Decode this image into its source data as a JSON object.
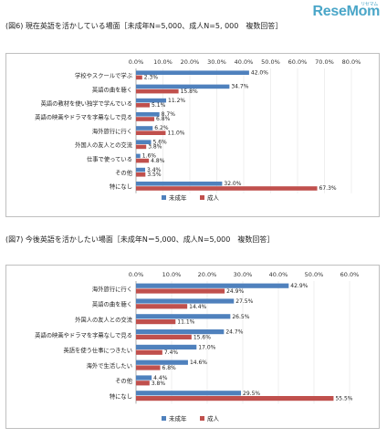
{
  "brand": {
    "name": "ReseMom",
    "sub": "リセマム"
  },
  "chart_data": [
    {
      "type": "bar",
      "title": "(図6) 現在英語を活かしている場面［未成年N=5,000、成人N=5, 000　複数回答］",
      "categories": [
        "学校やスクールで学ぶ",
        "英語の曲を聴く",
        "英語の教材を使い独学で学んでいる",
        "英語の映画やドラマを字幕なしで見る",
        "海外旅行に行く",
        "外国人の友人との交流",
        "仕事で使っている",
        "その他",
        "特になし"
      ],
      "series": [
        {
          "name": "未成年",
          "values": [
            42.0,
            34.7,
            11.2,
            8.7,
            6.2,
            5.6,
            1.6,
            3.4,
            32.0
          ],
          "labels": [
            "42.0%",
            "34.7%",
            "11.2%",
            "8.7%",
            "6.2%",
            "5.6%",
            "1.6%",
            "3.4%",
            "32.0%"
          ]
        },
        {
          "name": "成人",
          "values": [
            2.3,
            15.8,
            5.1,
            6.8,
            11.0,
            3.8,
            4.8,
            3.5,
            67.3
          ],
          "labels": [
            "2.3%",
            "15.8%",
            "5.1%",
            "6.8%",
            "11.0%",
            "3.8%",
            "4.8%",
            "3.5%",
            "67.3%"
          ]
        }
      ],
      "xlim": [
        0,
        80
      ],
      "ticks": [
        "0.0%",
        "10.0%",
        "20.0%",
        "30.0%",
        "40.0%",
        "50.0%",
        "60.0%",
        "70.0%",
        "80.0%"
      ],
      "tick_values": [
        0,
        10,
        20,
        30,
        40,
        50,
        60,
        70,
        80
      ],
      "legend_position": "bottom-center",
      "colors": [
        "#4f81bd",
        "#c0504d"
      ]
    },
    {
      "type": "bar",
      "title": "(図7) 今後英語を活かしたい場面［未成年N＝5,000、成人N=5,000　複数回答］",
      "categories": [
        "海外旅行に行く",
        "英語の曲を聴く",
        "外国人の友人との交流",
        "英語の映画やドラマを字幕なしで見る",
        "英語を使う仕事につきたい",
        "海外で生活したい",
        "その他",
        "特になし"
      ],
      "series": [
        {
          "name": "未成年",
          "values": [
            42.9,
            27.5,
            26.5,
            24.7,
            17.0,
            14.6,
            4.4,
            29.5
          ],
          "labels": [
            "42.9%",
            "27.5%",
            "26.5%",
            "24.7%",
            "17.0%",
            "14.6%",
            "4.4%",
            "29.5%"
          ]
        },
        {
          "name": "成人",
          "values": [
            24.9,
            14.4,
            11.1,
            15.6,
            7.4,
            6.8,
            3.8,
            55.5
          ],
          "labels": [
            "24.9%",
            "14.4%",
            "11.1%",
            "15.6%",
            "7.4%",
            "6.8%",
            "3.8%",
            "55.5%"
          ]
        }
      ],
      "xlim": [
        0,
        60
      ],
      "ticks": [
        "0.0%",
        "10.0%",
        "20.0%",
        "30.0%",
        "40.0%",
        "50.0%",
        "60.0%"
      ],
      "tick_values": [
        0,
        10,
        20,
        30,
        40,
        50,
        60
      ],
      "legend_position": "bottom-center",
      "colors": [
        "#4f81bd",
        "#c0504d"
      ]
    }
  ]
}
